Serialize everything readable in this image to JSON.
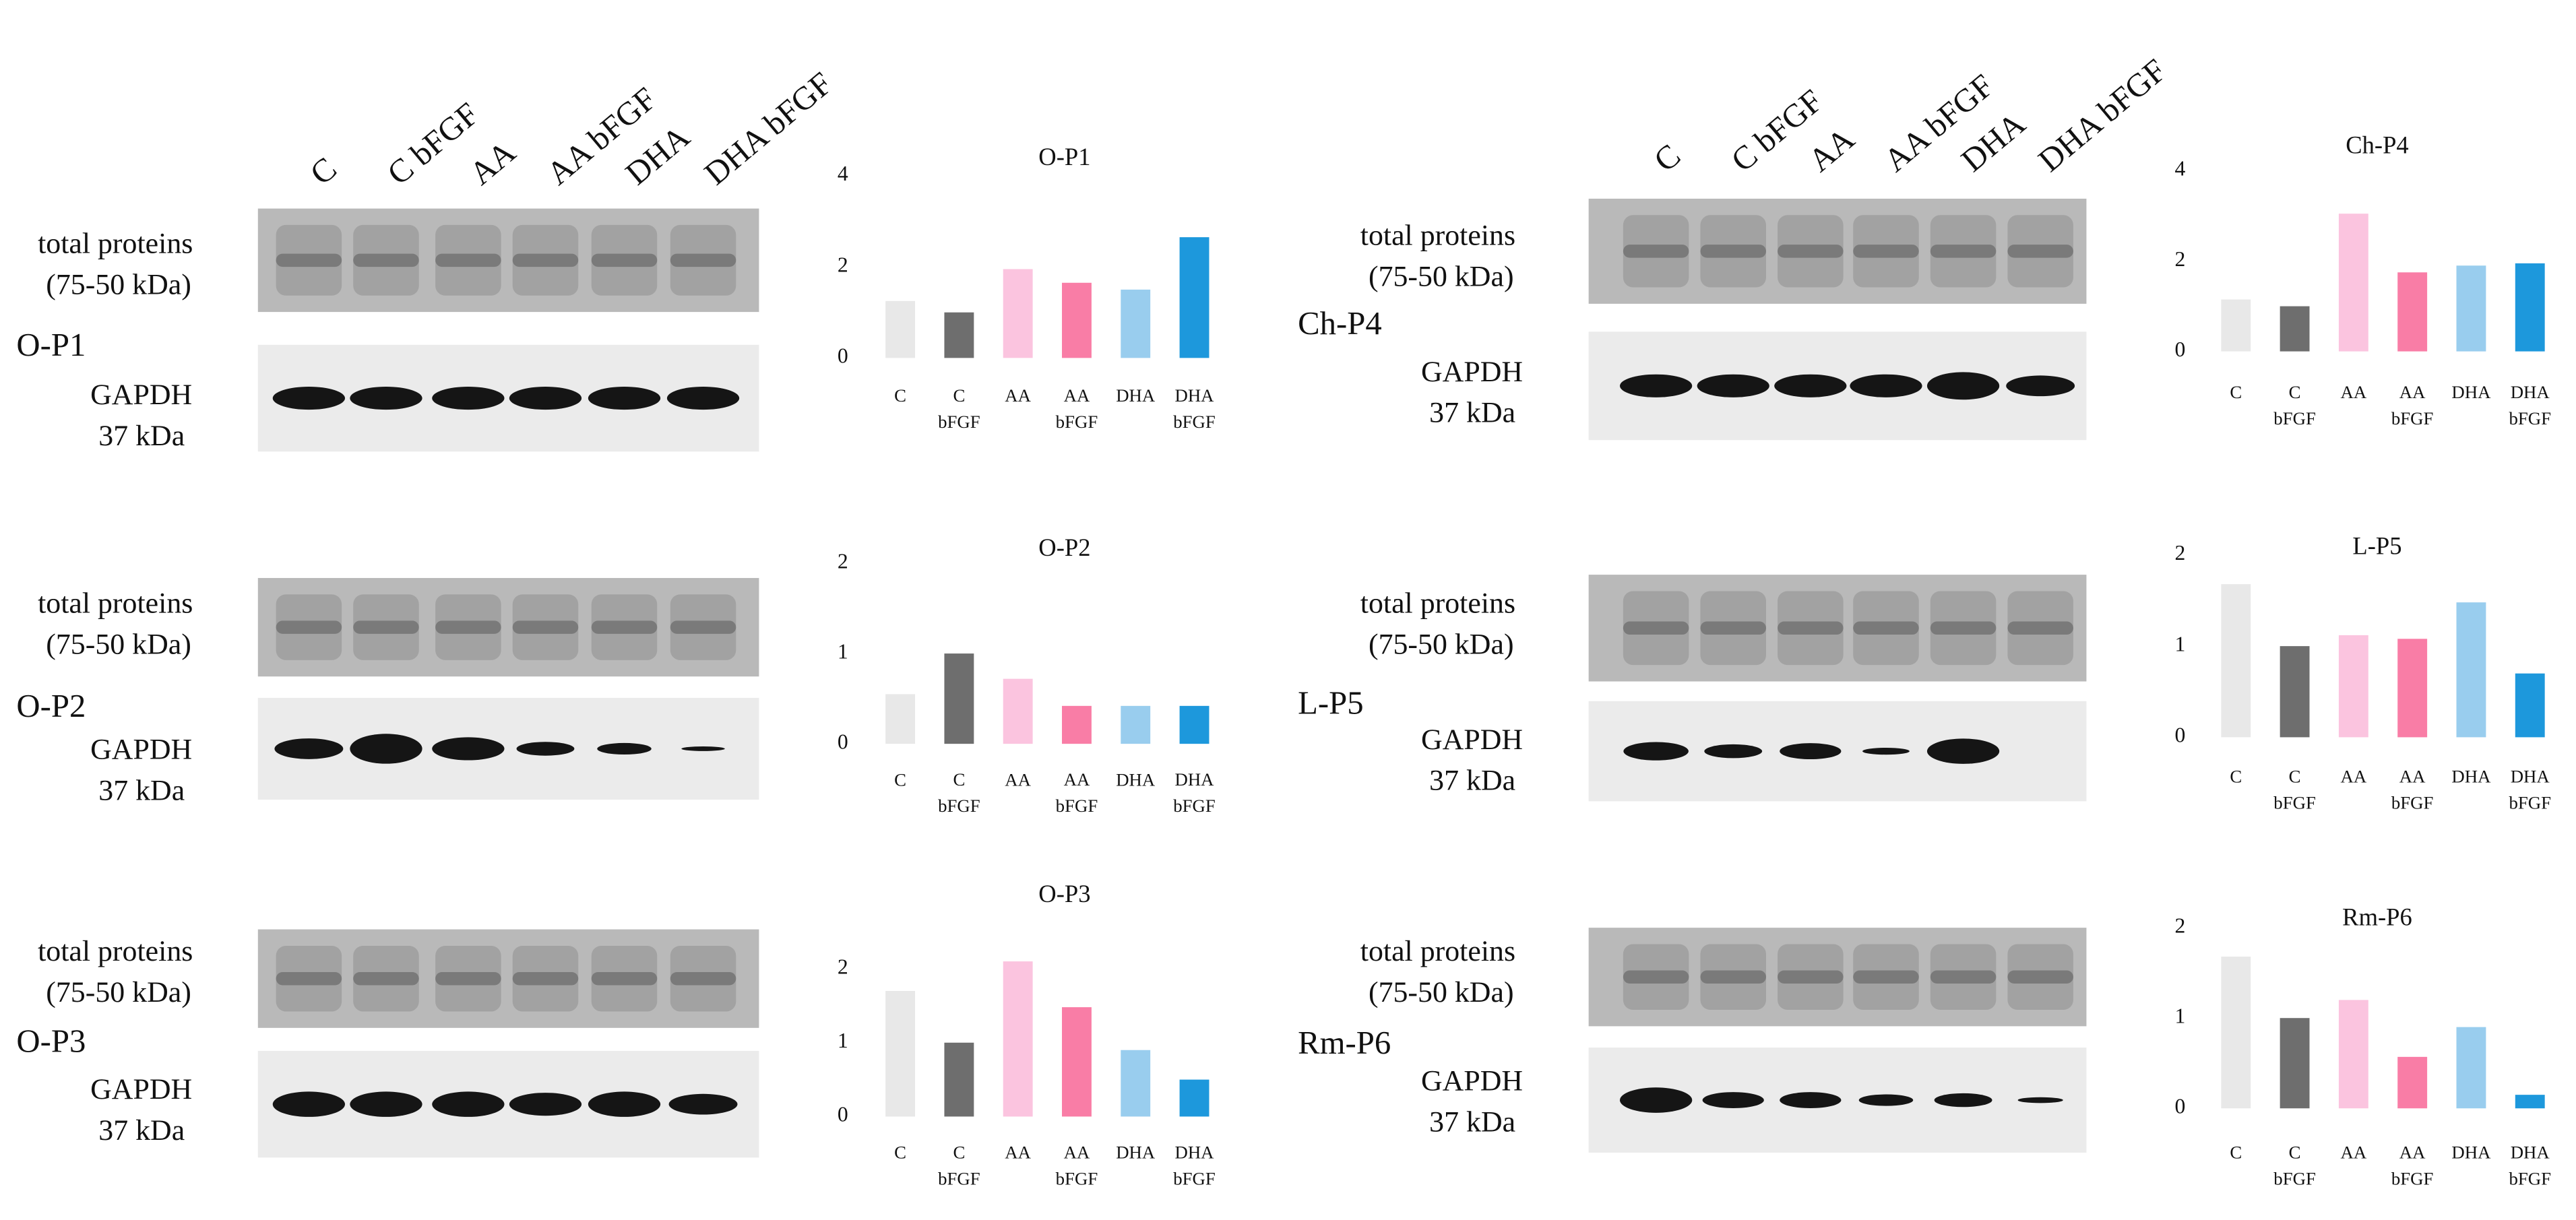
{
  "chart_data": [
    {
      "type": "bar",
      "title": "O-P1",
      "categories": [
        "C",
        "C bFGF",
        "AA",
        "AA bFGF",
        "DHA",
        "DHA bFGF"
      ],
      "values": [
        1.25,
        1.0,
        1.95,
        1.65,
        1.5,
        2.65
      ],
      "colors": [
        "#e8e8e8",
        "#6e6e6e",
        "#fbc4df",
        "#f97da6",
        "#99cdee",
        "#1d98dc"
      ],
      "ylim": [
        0,
        4
      ],
      "yticks": [
        0,
        2,
        4
      ]
    },
    {
      "type": "bar",
      "title": "O-P2",
      "categories": [
        "C",
        "C bFGF",
        "AA",
        "AA bFGF",
        "DHA",
        "DHA bFGF"
      ],
      "values": [
        0.55,
        1.0,
        0.72,
        0.42,
        0.42,
        0.42
      ],
      "colors": [
        "#e8e8e8",
        "#6e6e6e",
        "#fbc4df",
        "#f97da6",
        "#99cdee",
        "#1d98dc"
      ],
      "ylim": [
        0,
        2
      ],
      "yticks": [
        0,
        1,
        2
      ]
    },
    {
      "type": "bar",
      "title": "O-P3",
      "categories": [
        "C",
        "C bFGF",
        "AA",
        "AA bFGF",
        "DHA",
        "DHA bFGF"
      ],
      "values": [
        1.7,
        1.0,
        2.1,
        1.48,
        0.9,
        0.5
      ],
      "colors": [
        "#e8e8e8",
        "#6e6e6e",
        "#fbc4df",
        "#f97da6",
        "#99cdee",
        "#1d98dc"
      ],
      "ylim": [
        0,
        2
      ],
      "yticks": [
        0,
        1,
        2
      ]
    },
    {
      "type": "bar",
      "title": "Ch-P4",
      "categories": [
        "C",
        "C bFGF",
        "AA",
        "AA bFGF",
        "DHA",
        "DHA bFGF"
      ],
      "values": [
        1.15,
        1.0,
        3.05,
        1.75,
        1.9,
        1.95
      ],
      "colors": [
        "#e8e8e8",
        "#6e6e6e",
        "#fbc4df",
        "#f97da6",
        "#99cdee",
        "#1d98dc"
      ],
      "ylim": [
        0,
        4
      ],
      "yticks": [
        0,
        2,
        4
      ]
    },
    {
      "type": "bar",
      "title": "L-P5",
      "categories": [
        "C",
        "C bFGF",
        "AA",
        "AA bFGF",
        "DHA",
        "DHA bFGF"
      ],
      "values": [
        1.68,
        1.0,
        1.12,
        1.08,
        1.48,
        0.7
      ],
      "colors": [
        "#e8e8e8",
        "#6e6e6e",
        "#fbc4df",
        "#f97da6",
        "#99cdee",
        "#1d98dc"
      ],
      "ylim": [
        0,
        2
      ],
      "yticks": [
        0,
        1,
        2
      ]
    },
    {
      "type": "bar",
      "title": "Rm-P6",
      "categories": [
        "C",
        "C bFGF",
        "AA",
        "AA bFGF",
        "DHA",
        "DHA bFGF"
      ],
      "values": [
        1.68,
        1.0,
        1.2,
        0.57,
        0.9,
        0.15
      ],
      "colors": [
        "#e8e8e8",
        "#6e6e6e",
        "#fbc4df",
        "#f97da6",
        "#99cdee",
        "#1d98dc"
      ],
      "ylim": [
        0,
        2
      ],
      "yticks": [
        0,
        1,
        2
      ]
    }
  ],
  "blots": {
    "lanes_left": [
      "C",
      "C bFGF",
      "AA",
      "AA bFGF",
      "DHA",
      "DHA bFGF"
    ],
    "lanes_right": [
      "C",
      "C bFGF",
      "AA",
      "AA bFGF",
      "DHA",
      "DHA bFGF"
    ],
    "panels": [
      {
        "label": "O-P1",
        "total_line1": "total proteins",
        "total_line2": "(75-50 kDa)",
        "gapdh_line1": "GAPDH",
        "gapdh_line2": "37 kDa"
      },
      {
        "label": "O-P2",
        "total_line1": "total proteins",
        "total_line2": "(75-50 kDa)",
        "gapdh_line1": "GAPDH",
        "gapdh_line2": "37 kDa"
      },
      {
        "label": "O-P3",
        "total_line1": "total proteins",
        "total_line2": "(75-50 kDa)",
        "gapdh_line1": "GAPDH",
        "gapdh_line2": "37 kDa"
      },
      {
        "label": "Ch-P4",
        "total_line1": "total proteins",
        "total_line2": "(75-50 kDa)",
        "gapdh_line1": "GAPDH",
        "gapdh_line2": "37 kDa"
      },
      {
        "label": "L-P5",
        "total_line1": "total proteins",
        "total_line2": "(75-50 kDa)",
        "gapdh_line1": "GAPDH",
        "gapdh_line2": "37 kDa"
      },
      {
        "label": "Rm-P6",
        "total_line1": "total proteins",
        "total_line2": "(75-50 kDa)",
        "gapdh_line1": "GAPDH",
        "gapdh_line2": "37 kDa"
      }
    ]
  }
}
